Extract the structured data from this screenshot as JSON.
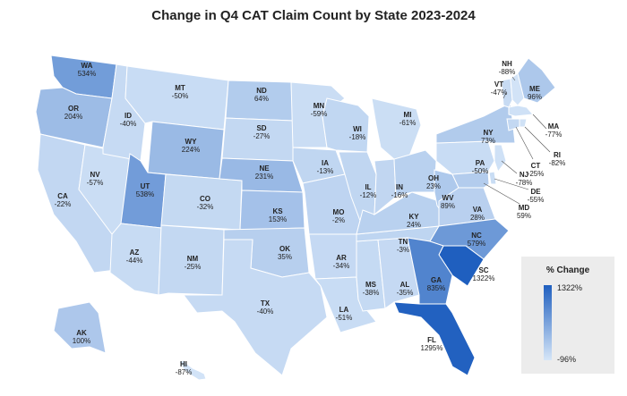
{
  "title": "Change in Q4 CAT Claim Count by State 2023-2024",
  "legend": {
    "title": "% Change",
    "max_label": "1322%",
    "min_label": "-96%",
    "max_value": 1322,
    "min_value": -96,
    "color_low": "#d6e6f8",
    "color_high": "#1f5fbf"
  },
  "chart_data": {
    "type": "choropleth",
    "states": [
      {
        "code": "WA",
        "value": 534,
        "label": "534%"
      },
      {
        "code": "OR",
        "value": 204,
        "label": "204%"
      },
      {
        "code": "CA",
        "value": -22,
        "label": "-22%"
      },
      {
        "code": "NV",
        "value": -57,
        "label": "-57%"
      },
      {
        "code": "ID",
        "value": -40,
        "label": "-40%"
      },
      {
        "code": "MT",
        "value": -50,
        "label": "-50%"
      },
      {
        "code": "WY",
        "value": 224,
        "label": "224%"
      },
      {
        "code": "UT",
        "value": 538,
        "label": "538%"
      },
      {
        "code": "AZ",
        "value": -44,
        "label": "-44%"
      },
      {
        "code": "CO",
        "value": -32,
        "label": "-32%"
      },
      {
        "code": "NM",
        "value": -25,
        "label": "-25%"
      },
      {
        "code": "ND",
        "value": 64,
        "label": "64%"
      },
      {
        "code": "SD",
        "value": -27,
        "label": "-27%"
      },
      {
        "code": "NE",
        "value": 231,
        "label": "231%"
      },
      {
        "code": "KS",
        "value": 153,
        "label": "153%"
      },
      {
        "code": "OK",
        "value": 35,
        "label": "35%"
      },
      {
        "code": "TX",
        "value": -40,
        "label": "-40%"
      },
      {
        "code": "MN",
        "value": -59,
        "label": "-59%"
      },
      {
        "code": "IA",
        "value": -13,
        "label": "-13%"
      },
      {
        "code": "MO",
        "value": -2,
        "label": "-2%"
      },
      {
        "code": "AR",
        "value": -34,
        "label": "-34%"
      },
      {
        "code": "LA",
        "value": -51,
        "label": "-51%"
      },
      {
        "code": "WI",
        "value": -18,
        "label": "-18%"
      },
      {
        "code": "IL",
        "value": -12,
        "label": "-12%"
      },
      {
        "code": "MS",
        "value": -38,
        "label": "-38%"
      },
      {
        "code": "AL",
        "value": -35,
        "label": "-35%"
      },
      {
        "code": "TN",
        "value": -3,
        "label": "-3%"
      },
      {
        "code": "KY",
        "value": 24,
        "label": "24%"
      },
      {
        "code": "IN",
        "value": -16,
        "label": "-16%"
      },
      {
        "code": "MI",
        "value": -61,
        "label": "-61%"
      },
      {
        "code": "OH",
        "value": 23,
        "label": "23%"
      },
      {
        "code": "WV",
        "value": 89,
        "label": "89%"
      },
      {
        "code": "VA",
        "value": 28,
        "label": "28%"
      },
      {
        "code": "NC",
        "value": 579,
        "label": "579%"
      },
      {
        "code": "SC",
        "value": 1322,
        "label": "1322%"
      },
      {
        "code": "GA",
        "value": 835,
        "label": "835%"
      },
      {
        "code": "FL",
        "value": 1295,
        "label": "1295%"
      },
      {
        "code": "PA",
        "value": -50,
        "label": "-50%"
      },
      {
        "code": "NY",
        "value": 73,
        "label": "73%"
      },
      {
        "code": "VT",
        "value": -47,
        "label": "-47%"
      },
      {
        "code": "NH",
        "value": -88,
        "label": "-88%"
      },
      {
        "code": "ME",
        "value": 96,
        "label": "96%"
      },
      {
        "code": "MA",
        "value": -77,
        "label": "-77%"
      },
      {
        "code": "RI",
        "value": -82,
        "label": "-82%"
      },
      {
        "code": "CT",
        "value": -25,
        "label": "-25%"
      },
      {
        "code": "NJ",
        "value": -78,
        "label": "-78%"
      },
      {
        "code": "DE",
        "value": -55,
        "label": "-55%"
      },
      {
        "code": "MD",
        "value": 59,
        "label": "59%"
      },
      {
        "code": "AK",
        "value": 100,
        "label": "100%"
      },
      {
        "code": "HI",
        "value": -87,
        "label": "-87%"
      }
    ]
  }
}
